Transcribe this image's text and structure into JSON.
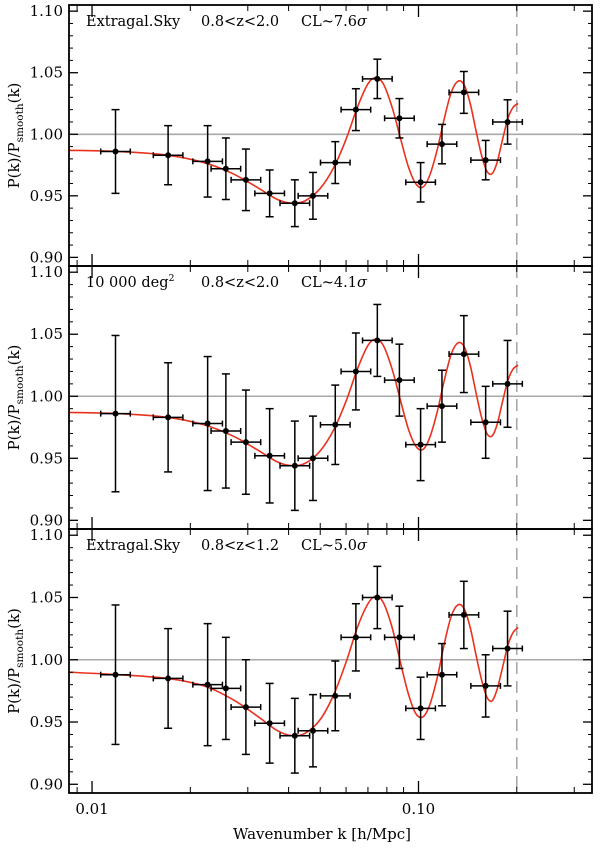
{
  "colors": {
    "frame": "#000000",
    "model_curve": "#e8321e",
    "reference_line": "#a8a8a8",
    "cutoff_line": "#a8a8a8",
    "points": "#000000"
  },
  "chart_data": [
    {
      "type": "scatter",
      "panel": "top",
      "annotation": {
        "label": "Extragal.Sky",
        "z_range": "0.8<z<2.0",
        "cl_prefix": "CL~7.6",
        "cl_symbol": "σ"
      },
      "ylabel": {
        "main": "P(k)/P",
        "sub": "smooth",
        "tail": "(k)"
      },
      "xscale": "log",
      "xlim": [
        0.0085,
        0.34
      ],
      "ylim": [
        0.893,
        1.105
      ],
      "xticks": [
        0.01,
        0.1
      ],
      "xtick_labels": [
        "0.01",
        "0.10"
      ],
      "yticks": [
        0.9,
        0.95,
        1.0,
        1.05,
        1.1
      ],
      "ytick_labels": [
        "0.90",
        "0.95",
        "1.00",
        "1.05",
        "1.10"
      ],
      "reference_y": 1.0,
      "cutoff_k": 0.2,
      "x_half_width_factor": 1.11,
      "points": [
        {
          "k": 0.0118,
          "y": 0.986,
          "yerr": 0.034
        },
        {
          "k": 0.0171,
          "y": 0.983,
          "yerr": 0.024
        },
        {
          "k": 0.0226,
          "y": 0.978,
          "yerr": 0.029
        },
        {
          "k": 0.0257,
          "y": 0.972,
          "yerr": 0.025
        },
        {
          "k": 0.0296,
          "y": 0.963,
          "yerr": 0.025
        },
        {
          "k": 0.035,
          "y": 0.952,
          "yerr": 0.019
        },
        {
          "k": 0.0418,
          "y": 0.944,
          "yerr": 0.019
        },
        {
          "k": 0.0475,
          "y": 0.95,
          "yerr": 0.019
        },
        {
          "k": 0.0556,
          "y": 0.977,
          "yerr": 0.017
        },
        {
          "k": 0.0643,
          "y": 1.02,
          "yerr": 0.017
        },
        {
          "k": 0.0748,
          "y": 1.045,
          "yerr": 0.016
        },
        {
          "k": 0.0874,
          "y": 1.013,
          "yerr": 0.016
        },
        {
          "k": 0.1015,
          "y": 0.961,
          "yerr": 0.016
        },
        {
          "k": 0.118,
          "y": 0.992,
          "yerr": 0.016
        },
        {
          "k": 0.1377,
          "y": 1.034,
          "yerr": 0.017
        },
        {
          "k": 0.1606,
          "y": 0.979,
          "yerr": 0.016
        },
        {
          "k": 0.1874,
          "y": 1.01,
          "yerr": 0.018
        }
      ],
      "model_curve": {
        "k": [
          0.0085,
          0.012,
          0.017,
          0.022,
          0.027,
          0.032,
          0.037,
          0.041,
          0.045,
          0.05,
          0.055,
          0.06,
          0.065,
          0.07,
          0.074,
          0.078,
          0.083,
          0.088,
          0.093,
          0.098,
          0.103,
          0.108,
          0.114,
          0.12,
          0.126,
          0.132,
          0.138,
          0.144,
          0.15,
          0.156,
          0.162,
          0.168,
          0.174,
          0.181,
          0.188,
          0.195,
          0.202
        ],
        "y": [
          0.987,
          0.986,
          0.983,
          0.977,
          0.968,
          0.957,
          0.947,
          0.944,
          0.946,
          0.956,
          0.973,
          0.996,
          1.022,
          1.041,
          1.046,
          1.041,
          1.022,
          0.997,
          0.974,
          0.96,
          0.957,
          0.966,
          0.987,
          1.013,
          1.034,
          1.043,
          1.04,
          1.025,
          1.003,
          0.983,
          0.97,
          0.968,
          0.977,
          0.996,
          1.013,
          1.022,
          1.025
        ]
      }
    },
    {
      "type": "scatter",
      "panel": "middle",
      "annotation": {
        "label": "10 000 deg",
        "label_sup": "2",
        "z_range": "0.8<z<2.0",
        "cl_prefix": "CL~4.1",
        "cl_symbol": "σ"
      },
      "ylabel": {
        "main": "P(k)/P",
        "sub": "smooth",
        "tail": "(k)"
      },
      "xscale": "log",
      "xlim": [
        0.0085,
        0.34
      ],
      "ylim": [
        0.893,
        1.105
      ],
      "xticks": [
        0.01,
        0.1
      ],
      "xtick_labels": [
        "0.01",
        "0.10"
      ],
      "yticks": [
        0.9,
        0.95,
        1.0,
        1.05,
        1.1
      ],
      "ytick_labels": [
        "0.90",
        "0.95",
        "1.00",
        "1.05",
        "1.10"
      ],
      "reference_y": 1.0,
      "cutoff_k": 0.2,
      "x_half_width_factor": 1.11,
      "points": [
        {
          "k": 0.0118,
          "y": 0.986,
          "yerr": 0.063
        },
        {
          "k": 0.0171,
          "y": 0.983,
          "yerr": 0.044
        },
        {
          "k": 0.0226,
          "y": 0.978,
          "yerr": 0.054
        },
        {
          "k": 0.0257,
          "y": 0.972,
          "yerr": 0.046
        },
        {
          "k": 0.0296,
          "y": 0.963,
          "yerr": 0.042
        },
        {
          "k": 0.035,
          "y": 0.952,
          "yerr": 0.038
        },
        {
          "k": 0.0418,
          "y": 0.944,
          "yerr": 0.036
        },
        {
          "k": 0.0475,
          "y": 0.95,
          "yerr": 0.034
        },
        {
          "k": 0.0556,
          "y": 0.977,
          "yerr": 0.032
        },
        {
          "k": 0.0643,
          "y": 1.02,
          "yerr": 0.031
        },
        {
          "k": 0.0748,
          "y": 1.045,
          "yerr": 0.029
        },
        {
          "k": 0.0874,
          "y": 1.013,
          "yerr": 0.029
        },
        {
          "k": 0.1015,
          "y": 0.961,
          "yerr": 0.029
        },
        {
          "k": 0.118,
          "y": 0.992,
          "yerr": 0.029
        },
        {
          "k": 0.1377,
          "y": 1.034,
          "yerr": 0.031
        },
        {
          "k": 0.1606,
          "y": 0.979,
          "yerr": 0.029
        },
        {
          "k": 0.1874,
          "y": 1.01,
          "yerr": 0.035
        }
      ],
      "model_curve": {
        "k": [
          0.0085,
          0.012,
          0.017,
          0.022,
          0.027,
          0.032,
          0.037,
          0.041,
          0.045,
          0.05,
          0.055,
          0.06,
          0.065,
          0.07,
          0.074,
          0.078,
          0.083,
          0.088,
          0.093,
          0.098,
          0.103,
          0.108,
          0.114,
          0.12,
          0.126,
          0.132,
          0.138,
          0.144,
          0.15,
          0.156,
          0.162,
          0.168,
          0.174,
          0.181,
          0.188,
          0.195,
          0.202
        ],
        "y": [
          0.987,
          0.986,
          0.983,
          0.977,
          0.968,
          0.957,
          0.947,
          0.944,
          0.946,
          0.956,
          0.973,
          0.996,
          1.022,
          1.041,
          1.046,
          1.041,
          1.022,
          0.997,
          0.974,
          0.96,
          0.957,
          0.966,
          0.987,
          1.013,
          1.034,
          1.043,
          1.04,
          1.025,
          1.003,
          0.983,
          0.97,
          0.968,
          0.977,
          0.996,
          1.013,
          1.022,
          1.025
        ]
      }
    },
    {
      "type": "scatter",
      "panel": "bottom",
      "annotation": {
        "label": "Extragal.Sky",
        "z_range": "0.8<z<1.2",
        "cl_prefix": "CL~5.0",
        "cl_symbol": "σ"
      },
      "ylabel": {
        "main": "P(k)/P",
        "sub": "smooth",
        "tail": "(k)"
      },
      "xlabel": "Wavenumber k [h/Mpc]",
      "xscale": "log",
      "xlim": [
        0.0085,
        0.34
      ],
      "ylim": [
        0.893,
        1.105
      ],
      "xticks": [
        0.01,
        0.1
      ],
      "xtick_labels": [
        "0.01",
        "0.10"
      ],
      "yticks": [
        0.9,
        0.95,
        1.0,
        1.05,
        1.1
      ],
      "ytick_labels": [
        "0.90",
        "0.95",
        "1.00",
        "1.05",
        "1.10"
      ],
      "reference_y": 1.0,
      "cutoff_k": 0.2,
      "x_half_width_factor": 1.11,
      "points": [
        {
          "k": 0.0118,
          "y": 0.988,
          "yerr": 0.056
        },
        {
          "k": 0.0171,
          "y": 0.985,
          "yerr": 0.04
        },
        {
          "k": 0.0226,
          "y": 0.98,
          "yerr": 0.049
        },
        {
          "k": 0.0257,
          "y": 0.977,
          "yerr": 0.041
        },
        {
          "k": 0.0296,
          "y": 0.962,
          "yerr": 0.038
        },
        {
          "k": 0.035,
          "y": 0.949,
          "yerr": 0.032
        },
        {
          "k": 0.0418,
          "y": 0.939,
          "yerr": 0.03
        },
        {
          "k": 0.0475,
          "y": 0.943,
          "yerr": 0.029
        },
        {
          "k": 0.0556,
          "y": 0.971,
          "yerr": 0.028
        },
        {
          "k": 0.0643,
          "y": 1.018,
          "yerr": 0.027
        },
        {
          "k": 0.0748,
          "y": 1.05,
          "yerr": 0.025
        },
        {
          "k": 0.0874,
          "y": 1.018,
          "yerr": 0.025
        },
        {
          "k": 0.1015,
          "y": 0.961,
          "yerr": 0.025
        },
        {
          "k": 0.118,
          "y": 0.988,
          "yerr": 0.025
        },
        {
          "k": 0.1377,
          "y": 1.036,
          "yerr": 0.027
        },
        {
          "k": 0.1606,
          "y": 0.979,
          "yerr": 0.025
        },
        {
          "k": 0.1874,
          "y": 1.009,
          "yerr": 0.03
        }
      ],
      "model_curve": {
        "k": [
          0.0085,
          0.012,
          0.017,
          0.022,
          0.027,
          0.032,
          0.037,
          0.041,
          0.045,
          0.05,
          0.055,
          0.06,
          0.065,
          0.07,
          0.074,
          0.078,
          0.083,
          0.088,
          0.093,
          0.098,
          0.103,
          0.108,
          0.114,
          0.12,
          0.126,
          0.132,
          0.138,
          0.144,
          0.15,
          0.156,
          0.162,
          0.168,
          0.174,
          0.181,
          0.188,
          0.195,
          0.202
        ],
        "y": [
          0.99,
          0.988,
          0.985,
          0.979,
          0.968,
          0.955,
          0.943,
          0.939,
          0.941,
          0.952,
          0.972,
          0.998,
          1.026,
          1.045,
          1.051,
          1.046,
          1.026,
          0.998,
          0.973,
          0.957,
          0.954,
          0.963,
          0.985,
          1.013,
          1.035,
          1.044,
          1.041,
          1.026,
          1.004,
          0.984,
          0.97,
          0.967,
          0.976,
          0.994,
          1.012,
          1.022,
          1.026
        ]
      }
    }
  ]
}
